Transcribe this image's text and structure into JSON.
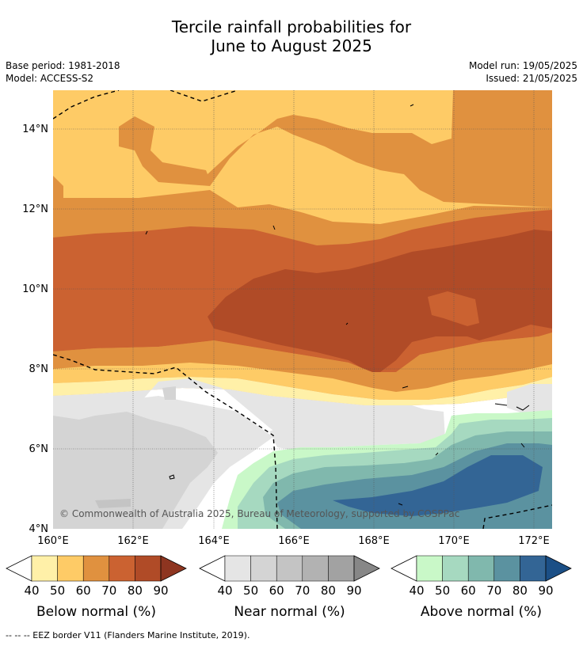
{
  "header": {
    "title_line1": "Tercile rainfall probabilities for",
    "title_line2": "June to August 2025",
    "base_period": "Base period: 1981-2018",
    "model": "Model: ACCESS-S2",
    "model_run": "Model run: 19/05/2025",
    "issued": "Issued: 21/05/2025"
  },
  "map": {
    "lat_ticks": [
      "4°N",
      "6°N",
      "8°N",
      "10°N",
      "12°N",
      "14°N"
    ],
    "lon_ticks": [
      "160°E",
      "162°E",
      "164°E",
      "166°E",
      "168°E",
      "170°E",
      "172°E"
    ],
    "copyright": "© Commonwealth of Australia 2025, Bureau of Meteorology, supported by COSPPac"
  },
  "legends": [
    {
      "title": "Below normal (%)",
      "ticks": [
        "40",
        "50",
        "60",
        "70",
        "80",
        "90"
      ],
      "colors": [
        "#fff0a8",
        "#fecb66",
        "#e0913f",
        "#cb6231",
        "#b04b27",
        "#8e3520"
      ]
    },
    {
      "title": "Near normal (%)",
      "ticks": [
        "40",
        "50",
        "60",
        "70",
        "80",
        "90"
      ],
      "colors": [
        "#e5e5e5",
        "#d4d4d4",
        "#c4c4c4",
        "#b2b2b2",
        "#a2a2a2",
        "#878787"
      ]
    },
    {
      "title": "Above normal (%)",
      "ticks": [
        "40",
        "50",
        "60",
        "70",
        "80",
        "90"
      ],
      "colors": [
        "#c9f8c8",
        "#a6d9c0",
        "#80b8ad",
        "#5b92a0",
        "#336595",
        "#1b4f86"
      ]
    }
  ],
  "footer": "--  --  -- EEZ border V11 (Flanders Marine Institute, 2019)."
}
